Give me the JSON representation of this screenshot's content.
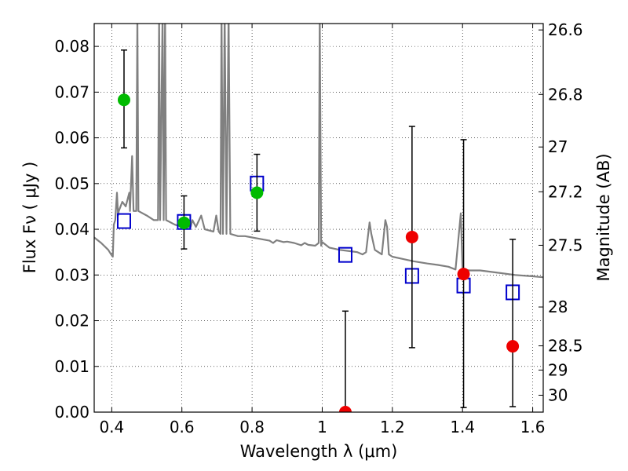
{
  "chart_data": {
    "type": "scatter",
    "xlabel": "Wavelength  λ (μm)",
    "ylabel_left": "Flux  Fν  ( μJy )",
    "ylabel_right": "Magnitude (AB)",
    "xlim": [
      0.35,
      1.63
    ],
    "ylim": [
      0.0,
      0.085
    ],
    "grid": true,
    "x_ticks": [
      0.4,
      0.6,
      0.8,
      1.0,
      1.2,
      1.4,
      1.6
    ],
    "x_tick_labels": [
      "0.4",
      "0.6",
      "0.8",
      "1",
      "1.2",
      "1.4",
      "1.6"
    ],
    "y_ticks": [
      0.0,
      0.01,
      0.02,
      0.03,
      0.04,
      0.05,
      0.06,
      0.07,
      0.08
    ],
    "y_tick_labels": [
      "0.00",
      "0.01",
      "0.02",
      "0.03",
      "0.04",
      "0.05",
      "0.06",
      "0.07",
      "0.08"
    ],
    "right_ticks": [
      {
        "label": "26.6",
        "flux": 0.0836
      },
      {
        "label": "26.8",
        "flux": 0.0695
      },
      {
        "label": "27",
        "flux": 0.058
      },
      {
        "label": "27.2",
        "flux": 0.0482
      },
      {
        "label": "27.5",
        "flux": 0.0365
      },
      {
        "label": "28",
        "flux": 0.023
      },
      {
        "label": "28.5",
        "flux": 0.0145
      },
      {
        "label": "29",
        "flux": 0.0092
      },
      {
        "label": "30",
        "flux": 0.0037
      }
    ],
    "series": [
      {
        "marker": "green-circle",
        "color": "#00bb00",
        "points": [
          {
            "x": 0.435,
            "y": 0.0683,
            "ylo": 0.0578,
            "yhi": 0.0792
          },
          {
            "x": 0.606,
            "y": 0.0414,
            "ylo": 0.0357,
            "yhi": 0.0473
          },
          {
            "x": 0.814,
            "y": 0.048,
            "ylo": 0.0396,
            "yhi": 0.0564
          }
        ]
      },
      {
        "marker": "red-circle",
        "color": "#ee0000",
        "points": [
          {
            "x": 1.066,
            "y": 0.0,
            "ylo": 0.0,
            "yhi": 0.0221
          },
          {
            "x": 1.256,
            "y": 0.0383,
            "ylo": 0.0141,
            "yhi": 0.0625
          },
          {
            "x": 1.403,
            "y": 0.0302,
            "ylo": 0.001,
            "yhi": 0.0596
          },
          {
            "x": 1.543,
            "y": 0.0144,
            "ylo": 0.0012,
            "yhi": 0.0378
          }
        ]
      },
      {
        "marker": "blue-open-square",
        "color": "#0000cc",
        "points": [
          {
            "x": 0.435,
            "y": 0.0418
          },
          {
            "x": 0.606,
            "y": 0.0416
          },
          {
            "x": 0.814,
            "y": 0.05
          },
          {
            "x": 1.066,
            "y": 0.0344
          },
          {
            "x": 1.256,
            "y": 0.0298
          },
          {
            "x": 1.403,
            "y": 0.0277
          },
          {
            "x": 1.543,
            "y": 0.0262
          }
        ]
      },
      {
        "marker": "gray-line",
        "color": "#808080",
        "points": [
          [
            0.35,
            0.0382
          ],
          [
            0.37,
            0.037
          ],
          [
            0.39,
            0.0355
          ],
          [
            0.398,
            0.0345
          ],
          [
            0.403,
            0.034
          ],
          [
            0.406,
            0.041
          ],
          [
            0.41,
            0.042
          ],
          [
            0.415,
            0.048
          ],
          [
            0.418,
            0.043
          ],
          [
            0.42,
            0.044
          ],
          [
            0.43,
            0.046
          ],
          [
            0.44,
            0.045
          ],
          [
            0.45,
            0.048
          ],
          [
            0.452,
            0.044
          ],
          [
            0.458,
            0.056
          ],
          [
            0.462,
            0.044
          ],
          [
            0.47,
            0.044
          ],
          [
            0.473,
            0.087
          ],
          [
            0.476,
            0.044
          ],
          [
            0.5,
            0.043
          ],
          [
            0.52,
            0.042
          ],
          [
            0.532,
            0.042
          ],
          [
            0.535,
            0.087
          ],
          [
            0.538,
            0.042
          ],
          [
            0.545,
            0.087
          ],
          [
            0.548,
            0.042
          ],
          [
            0.552,
            0.087
          ],
          [
            0.555,
            0.042
          ],
          [
            0.58,
            0.041
          ],
          [
            0.6,
            0.0405
          ],
          [
            0.625,
            0.0405
          ],
          [
            0.63,
            0.042
          ],
          [
            0.64,
            0.0405
          ],
          [
            0.655,
            0.043
          ],
          [
            0.665,
            0.04
          ],
          [
            0.69,
            0.0395
          ],
          [
            0.698,
            0.043
          ],
          [
            0.705,
            0.0395
          ],
          [
            0.71,
            0.039
          ],
          [
            0.713,
            0.087
          ],
          [
            0.717,
            0.039
          ],
          [
            0.722,
            0.087
          ],
          [
            0.727,
            0.039
          ],
          [
            0.733,
            0.087
          ],
          [
            0.738,
            0.039
          ],
          [
            0.76,
            0.0385
          ],
          [
            0.78,
            0.0385
          ],
          [
            0.8,
            0.0382
          ],
          [
            0.815,
            0.038
          ],
          [
            0.83,
            0.0378
          ],
          [
            0.85,
            0.0375
          ],
          [
            0.86,
            0.037
          ],
          [
            0.87,
            0.0376
          ],
          [
            0.88,
            0.0374
          ],
          [
            0.89,
            0.0372
          ],
          [
            0.9,
            0.0373
          ],
          [
            0.92,
            0.037
          ],
          [
            0.94,
            0.0365
          ],
          [
            0.95,
            0.037
          ],
          [
            0.96,
            0.0366
          ],
          [
            0.98,
            0.0364
          ],
          [
            0.99,
            0.037
          ],
          [
            0.993,
            0.087
          ],
          [
            0.997,
            0.0364
          ],
          [
            1.0,
            0.0372
          ],
          [
            1.02,
            0.036
          ],
          [
            1.05,
            0.0355
          ],
          [
            1.08,
            0.0352
          ],
          [
            1.1,
            0.035
          ],
          [
            1.115,
            0.0345
          ],
          [
            1.125,
            0.035
          ],
          [
            1.135,
            0.0415
          ],
          [
            1.14,
            0.039
          ],
          [
            1.15,
            0.0355
          ],
          [
            1.17,
            0.0345
          ],
          [
            1.18,
            0.042
          ],
          [
            1.185,
            0.0405
          ],
          [
            1.19,
            0.0345
          ],
          [
            1.2,
            0.034
          ],
          [
            1.23,
            0.0335
          ],
          [
            1.26,
            0.033
          ],
          [
            1.3,
            0.0325
          ],
          [
            1.33,
            0.0322
          ],
          [
            1.36,
            0.0318
          ],
          [
            1.38,
            0.0312
          ],
          [
            1.395,
            0.0435
          ],
          [
            1.4,
            0.0312
          ],
          [
            1.42,
            0.031
          ],
          [
            1.45,
            0.031
          ],
          [
            1.5,
            0.0305
          ],
          [
            1.55,
            0.03
          ],
          [
            1.6,
            0.0297
          ],
          [
            1.63,
            0.0295
          ]
        ]
      }
    ]
  }
}
